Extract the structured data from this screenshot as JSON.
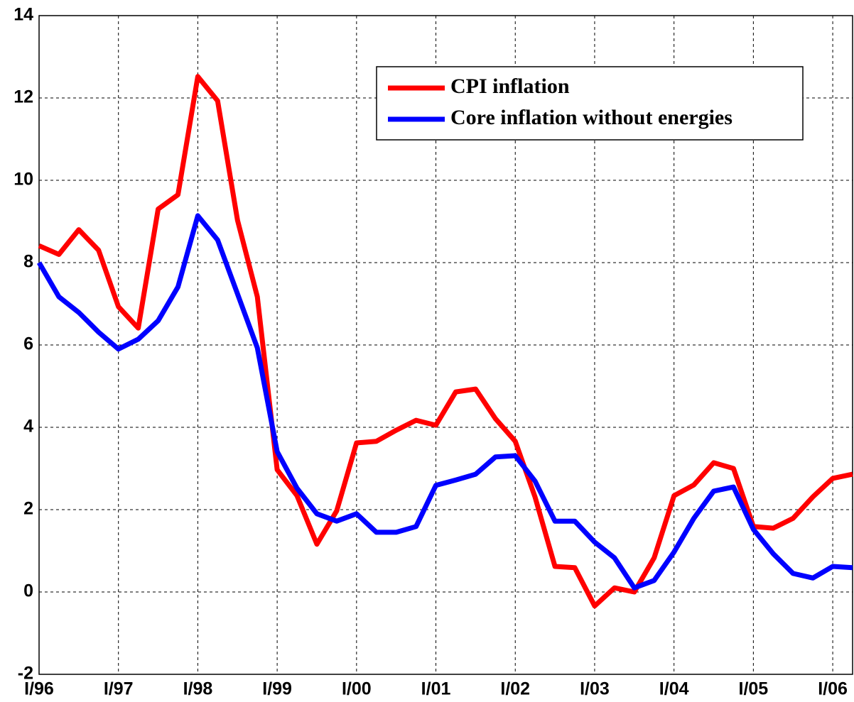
{
  "chart_data": {
    "type": "line",
    "categories": [
      "I/96",
      null,
      null,
      null,
      "I/97",
      null,
      null,
      null,
      "I/98",
      null,
      null,
      null,
      "I/99",
      null,
      null,
      null,
      "I/00",
      null,
      null,
      null,
      "I/01",
      null,
      null,
      null,
      "I/02",
      null,
      null,
      null,
      "I/03",
      null,
      null,
      null,
      "I/04",
      null,
      null,
      null,
      "I/05",
      null,
      null,
      null,
      "I/06",
      null
    ],
    "series": [
      {
        "name": "CPI inflation",
        "color": "#ff0000",
        "values": [
          8.41,
          8.2,
          8.8,
          8.3,
          6.93,
          6.41,
          9.3,
          9.65,
          12.52,
          11.93,
          9.03,
          7.17,
          2.97,
          2.34,
          1.16,
          1.97,
          3.62,
          3.66,
          3.93,
          4.17,
          4.05,
          4.86,
          4.93,
          4.21,
          3.66,
          2.3,
          0.62,
          0.59,
          -0.34,
          0.1,
          0.0,
          0.83,
          2.34,
          2.6,
          3.14,
          3.0,
          1.59,
          1.55,
          1.79,
          2.31,
          2.76,
          2.86
        ]
      },
      {
        "name": "Core inflation without energies",
        "color": "#0000ff",
        "values": [
          8.0,
          7.17,
          6.79,
          6.31,
          5.9,
          6.14,
          6.59,
          7.41,
          9.14,
          8.55,
          7.24,
          5.93,
          3.41,
          2.52,
          1.9,
          1.72,
          1.9,
          1.45,
          1.45,
          1.59,
          2.59,
          2.72,
          2.86,
          3.28,
          3.31,
          2.69,
          1.72,
          1.72,
          1.21,
          0.83,
          0.1,
          0.28,
          0.97,
          1.79,
          2.45,
          2.55,
          1.52,
          0.93,
          0.45,
          0.34,
          0.62,
          0.59
        ]
      }
    ],
    "ylim": [
      -2,
      14
    ],
    "yticks": [
      -2,
      0,
      2,
      4,
      6,
      8,
      10,
      12,
      14
    ],
    "grid": true,
    "legend": "upper-right"
  }
}
